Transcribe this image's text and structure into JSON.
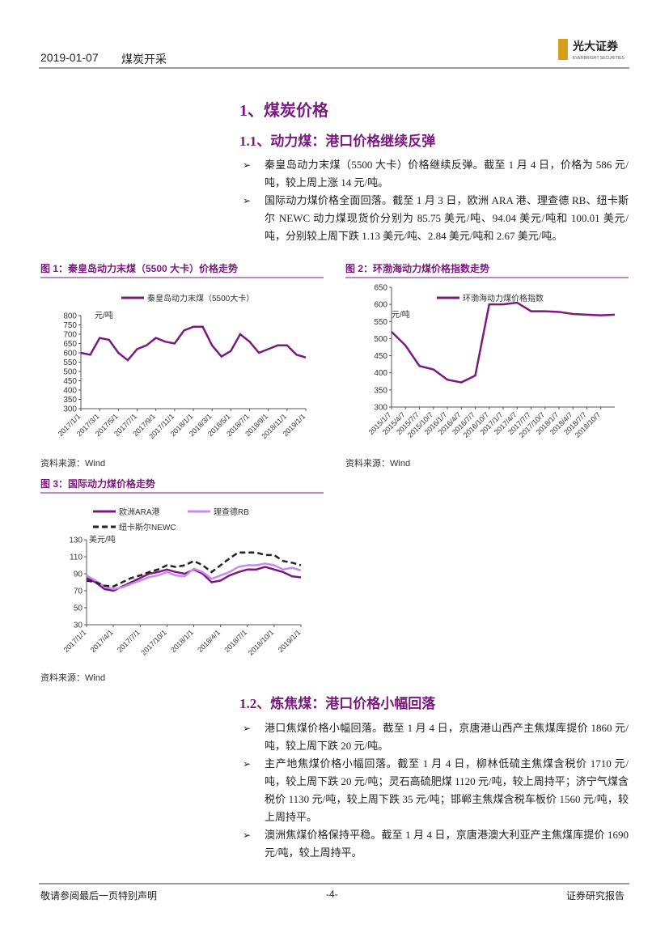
{
  "header": {
    "date": "2019-01-07",
    "sector": "煤炭开采",
    "brand": "光大证券",
    "brand_en": "EVERBRIGHT SECURITIES"
  },
  "section": {
    "title": "1、煤炭价格"
  },
  "sub1": {
    "title": "1.1、动力煤：港口价格继续反弹",
    "bullets": [
      "秦皇岛动力末煤（5500 大卡）价格继续反弹。截至 1 月 4 日，价格为 586 元/吨，较上周上涨 14 元/吨。",
      "国际动力煤价格全面回落。截至 1 月 3 日，欧洲 ARA 港、理查德 RB、纽卡斯尔 NEWC 动力煤现货价分别为 85.75 美元/吨、94.04 美元/吨和 100.01 美元/吨，分别较上周下跌 1.13 美元/吨、2.84 美元/吨和 2.67 美元/吨。"
    ]
  },
  "chart_data": [
    {
      "type": "line",
      "title": "图 1：秦皇岛动力末煤（5500 大卡）价格走势",
      "unit": "元/吨",
      "source": "资料来源：Wind",
      "categories": [
        "2017/1/1",
        null,
        "2017/3/1",
        null,
        "2017/5/1",
        null,
        "2017/7/1",
        null,
        "2017/9/1",
        null,
        "2017/11/1",
        null,
        "2018/1/1",
        null,
        "2018/3/1",
        null,
        "2018/5/1",
        null,
        "2018/7/1",
        null,
        "2018/9/1",
        null,
        "2018/11/1",
        null,
        "2019/1/1"
      ],
      "series": [
        {
          "name": "秦皇岛动力末煤（5500大卡）",
          "color": "#7b1a7e",
          "values": [
            600,
            590,
            680,
            670,
            600,
            560,
            620,
            640,
            680,
            660,
            650,
            720,
            740,
            740,
            640,
            580,
            610,
            700,
            660,
            600,
            620,
            640,
            640,
            590,
            575
          ]
        }
      ],
      "ylim": [
        300,
        800
      ],
      "yticks": [
        300,
        350,
        400,
        450,
        500,
        550,
        600,
        650,
        700,
        750,
        800
      ],
      "legend": "top"
    },
    {
      "type": "line",
      "title": "图 2：环渤海动力煤价格指数走势",
      "unit": "元/吨",
      "source": "资料来源：Wind",
      "categories": [
        "2015/1/7",
        "2015/4/7",
        "2015/7/7",
        "2015/10/7",
        "2016/1/7",
        "2016/4/7",
        "2016/7/7",
        "2016/10/7",
        "2017/1/7",
        "2017/4/7",
        "2017/7/7",
        "2017/10/7",
        "2018/1/7",
        "2018/4/7",
        "2018/7/7",
        "2018/10/7",
        null
      ],
      "series": [
        {
          "name": "环渤海动力煤价格指数",
          "color": "#7b1a7e",
          "values": [
            520,
            480,
            420,
            410,
            380,
            372,
            392,
            600,
            600,
            605,
            580,
            580,
            578,
            572,
            570,
            568,
            570
          ]
        }
      ],
      "ylim": [
        300,
        650
      ],
      "yticks": [
        300,
        350,
        400,
        450,
        500,
        550,
        600,
        650
      ],
      "legend": "top"
    },
    {
      "type": "line",
      "title": "图 3：国际动力煤价格走势",
      "unit": "美元/吨",
      "source": "资料来源：Wind",
      "categories": [
        "2017/1/1",
        null,
        null,
        "2017/4/1",
        null,
        null,
        "2017/7/1",
        null,
        null,
        "2017/10/1",
        null,
        null,
        "2018/1/1",
        null,
        null,
        "2018/4/1",
        null,
        null,
        "2018/7/1",
        null,
        null,
        "2018/10/1",
        null,
        null,
        "2019/1/1"
      ],
      "series": [
        {
          "name": "欧洲ARA港",
          "color": "#7b1a7e",
          "values": [
            85,
            80,
            72,
            70,
            75,
            80,
            85,
            90,
            92,
            95,
            92,
            90,
            95,
            90,
            80,
            82,
            88,
            92,
            95,
            95,
            98,
            95,
            92,
            87,
            85.75
          ]
        },
        {
          "name": "理查德RB",
          "color": "#cc88ee",
          "values": [
            88,
            82,
            75,
            72,
            74,
            78,
            82,
            86,
            88,
            92,
            88,
            87,
            96,
            92,
            84,
            88,
            92,
            98,
            100,
            100,
            102,
            100,
            95,
            97,
            94.04
          ]
        },
        {
          "name": "纽卡斯尔NEWC",
          "color": "#222222",
          "dash": true,
          "values": [
            82,
            80,
            76,
            75,
            80,
            85,
            88,
            92,
            95,
            100,
            98,
            100,
            105,
            100,
            92,
            100,
            108,
            115,
            115,
            115,
            112,
            112,
            105,
            103,
            100.01
          ]
        }
      ],
      "ylim": [
        30,
        130
      ],
      "yticks": [
        30,
        50,
        70,
        90,
        110,
        130
      ],
      "legend": "top"
    }
  ],
  "sub2": {
    "title": "1.2、炼焦煤：港口价格小幅回落",
    "bullets": [
      "港口焦煤价格小幅回落。截至 1 月 4 日，京唐港山西产主焦煤库提价 1860 元/吨，较上周下跌 20 元/吨。",
      "主产地焦煤价格小幅回落。截至 1 月 4 日，柳林低硫主焦煤含税价 1710 元/吨，较上周下跌 20 元/吨；灵石高硫肥煤 1120 元/吨，较上周持平；济宁气煤含税价 1130 元/吨，较上周下跌 35 元/吨；邯郸主焦煤含税车板价 1560 元/吨，较上周持平。",
      "澳洲焦煤价格保持平稳。截至 1 月 4 日，京唐港澳大利亚产主焦煤库提价 1690 元/吨，较上周持平。"
    ]
  },
  "footer": {
    "left": "敬请参阅最后一页特别声明",
    "page": "-4-",
    "right": "证券研究报告"
  }
}
